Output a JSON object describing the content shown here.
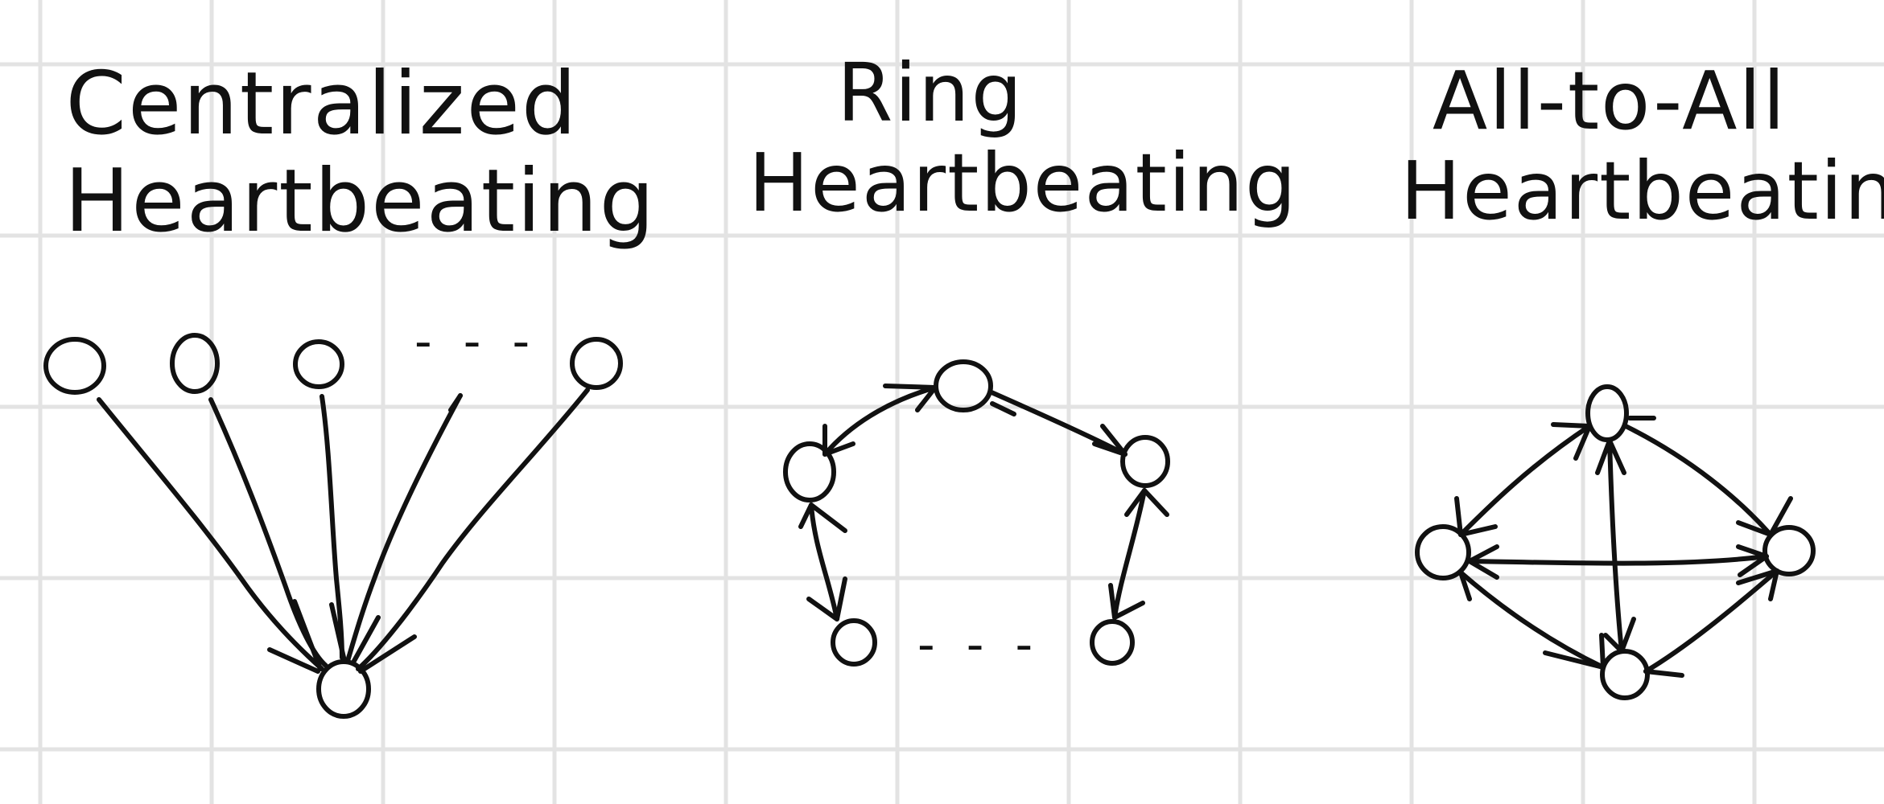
{
  "diagram": {
    "titles": {
      "centralized": {
        "line1": "Centralized",
        "line2": "Heartbeating"
      },
      "ring": {
        "line1": "Ring",
        "line2": "Heartbeating"
      },
      "all_to_all": {
        "line1": "All-to-All",
        "line2": "Heartbeating"
      }
    },
    "ellipsis": "- - -",
    "colors": {
      "ink": "#111111",
      "grid": "#e3e3e3",
      "paper": "#ffffff"
    }
  }
}
